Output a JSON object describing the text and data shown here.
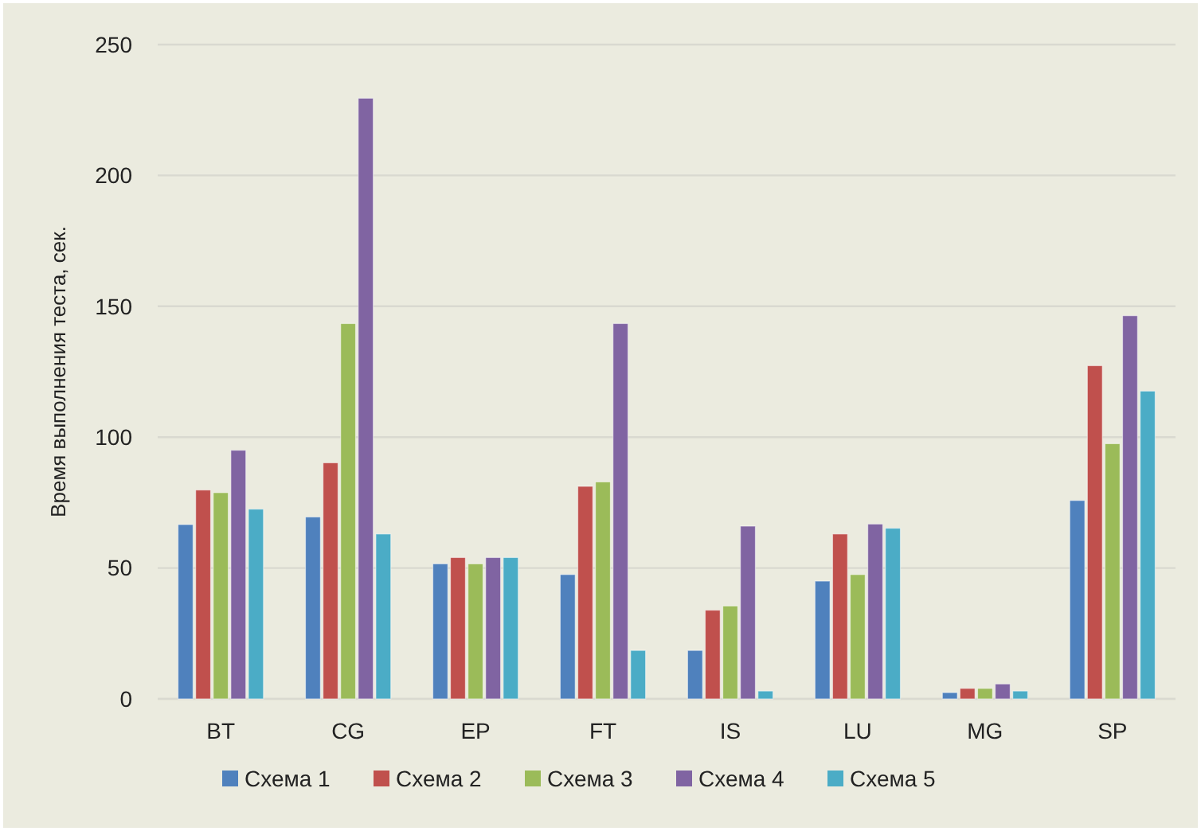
{
  "chart_data": {
    "type": "bar",
    "ylabel": "Время выполнения теста, сек.",
    "categories": [
      "BT",
      "CG",
      "EP",
      "FT",
      "IS",
      "LU",
      "MG",
      "SP"
    ],
    "series": [
      {
        "name": "Схема 1",
        "color": "#4f81bd",
        "values": [
          66.6,
          69.5,
          51.6,
          47.5,
          18.5,
          45,
          2.4,
          75.8
        ]
      },
      {
        "name": "Схема 2",
        "color": "#c0504d",
        "values": [
          79.8,
          90.2,
          54,
          81.2,
          33.9,
          63,
          4,
          127.3
        ]
      },
      {
        "name": "Схема 3",
        "color": "#9bbb59",
        "values": [
          78.8,
          143.4,
          51.6,
          82.9,
          35.5,
          47.5,
          4,
          97.5
        ]
      },
      {
        "name": "Схема 4",
        "color": "#8064a2",
        "values": [
          95,
          229.5,
          54,
          143.4,
          66,
          66.8,
          5.7,
          146.4
        ]
      },
      {
        "name": "Схема 5",
        "color": "#4bacc6",
        "values": [
          72.5,
          63,
          54,
          18.5,
          3,
          65.2,
          3,
          117.6
        ]
      }
    ],
    "ylim": [
      0,
      250
    ],
    "yticks": [
      0,
      50,
      100,
      150,
      200,
      250
    ],
    "grid": "y",
    "legend": "bottom"
  }
}
